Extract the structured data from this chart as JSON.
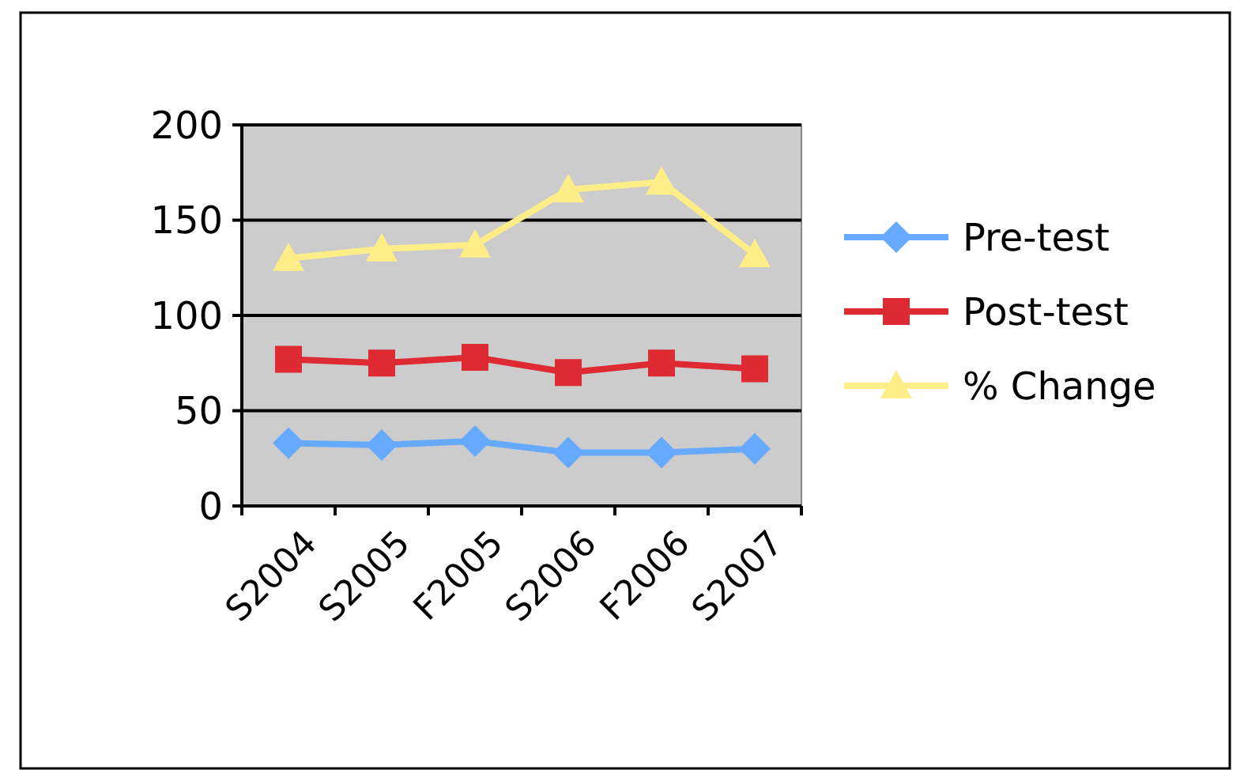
{
  "chart_data": {
    "type": "line",
    "categories": [
      "S2004",
      "S2005",
      "F2005",
      "S2006",
      "F2006",
      "S2007"
    ],
    "series": [
      {
        "name": "Pre-test",
        "color": "#66aaff",
        "marker": "diamond",
        "values": [
          33,
          32,
          34,
          28,
          28,
          30
        ]
      },
      {
        "name": "Post-test",
        "color": "#dd2a33",
        "marker": "square",
        "values": [
          77,
          75,
          78,
          70,
          75,
          72
        ]
      },
      {
        "name": "% Change",
        "color": "#ffee88",
        "marker": "triangle",
        "values": [
          130,
          135,
          137,
          166,
          170,
          132
        ]
      }
    ],
    "ylim": [
      0,
      200
    ],
    "yticks": [
      0,
      50,
      100,
      150,
      200
    ],
    "grid": "y",
    "legend": "right"
  }
}
